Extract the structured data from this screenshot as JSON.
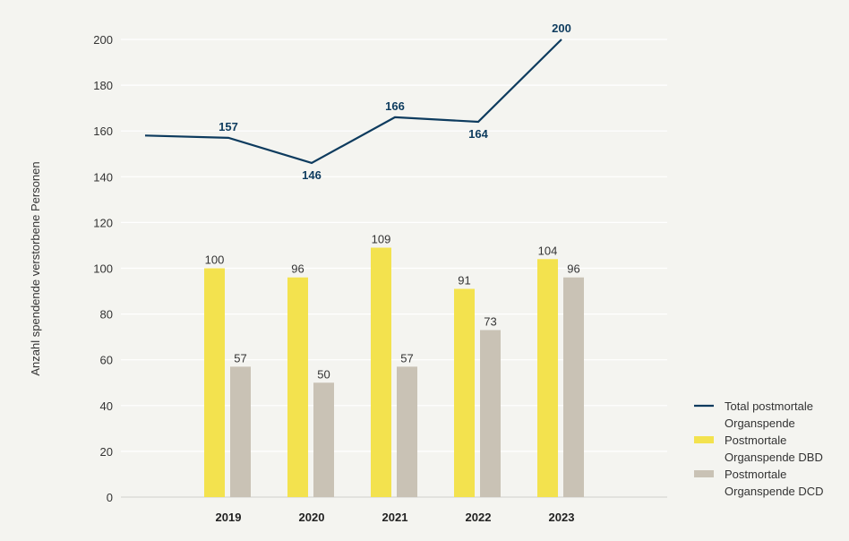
{
  "chart_data": {
    "type": "bar",
    "title": "",
    "xlabel": "",
    "ylabel": "Anzahl spendende verstorbene Personen",
    "ylim": [
      0,
      200
    ],
    "yticks": [
      0,
      20,
      40,
      60,
      80,
      100,
      120,
      140,
      160,
      180,
      200
    ],
    "grid": true,
    "legend_position": "bottom-right",
    "categories": [
      "",
      "2019",
      "2020",
      "2021",
      "2022",
      "2023"
    ],
    "series": [
      {
        "name": "Total postmortale Organspende",
        "legend": [
          "Total postmortale",
          "Organspende"
        ],
        "type": "line",
        "color": "#0d3b5e",
        "values": [
          158,
          157,
          146,
          166,
          164,
          200
        ],
        "labels": [
          "",
          "157",
          "146",
          "166",
          "164",
          "200"
        ]
      },
      {
        "name": "Postmortale Organspende DBD",
        "legend": [
          "Postmortale",
          "Organspende DBD"
        ],
        "type": "bar",
        "color": "#f3e24e",
        "values": [
          null,
          100,
          96,
          109,
          91,
          104
        ],
        "labels": [
          "",
          "100",
          "96",
          "109",
          "91",
          "104"
        ]
      },
      {
        "name": "Postmortale Organspende DCD",
        "legend": [
          "Postmortale",
          "Organspende DCD"
        ],
        "type": "bar",
        "color": "#c9c2b5",
        "values": [
          null,
          57,
          50,
          57,
          73,
          96
        ],
        "labels": [
          "",
          "57",
          "50",
          "57",
          "73",
          "96"
        ]
      }
    ]
  }
}
